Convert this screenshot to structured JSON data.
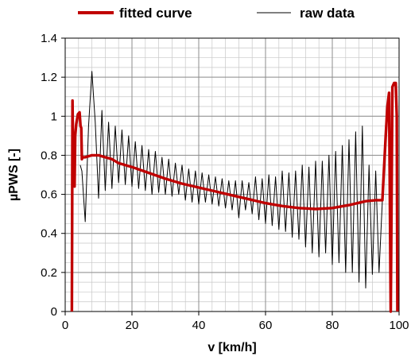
{
  "chart_data": {
    "type": "line",
    "xlabel": "v [km/h]",
    "ylabel": "µPWS [-]",
    "xlim": [
      0,
      100
    ],
    "ylim": [
      0,
      1.4
    ],
    "x_ticks": [
      0,
      20,
      40,
      60,
      80,
      100
    ],
    "y_ticks": [
      0,
      0.2,
      0.4,
      0.6,
      0.8,
      1,
      1.2,
      1.4
    ],
    "x_tick_labels": [
      "0",
      "20",
      "40",
      "60",
      "80",
      "100"
    ],
    "y_tick_labels": [
      "0",
      "0.2",
      "0.4",
      "0.6",
      "0.8",
      "1",
      "1.2",
      "1.4"
    ],
    "grid": true,
    "legend_position": "top",
    "series": [
      {
        "name": "fitted curve",
        "color": "#c00000",
        "x": [
          2.0,
          2.2,
          2.4,
          2.8,
          3.0,
          3.3,
          3.8,
          4.3,
          4.6,
          4.8,
          5.0,
          5.2,
          6,
          8,
          10,
          12,
          14,
          16,
          18,
          20,
          25,
          30,
          35,
          40,
          45,
          50,
          55,
          60,
          65,
          70,
          75,
          80,
          85,
          90,
          93,
          95,
          96,
          96.5,
          97,
          97.5,
          98,
          98.5,
          99,
          99.3,
          99.5
        ],
        "values": [
          0.0,
          1.08,
          0.72,
          0.64,
          0.9,
          0.96,
          1.01,
          1.02,
          0.95,
          0.94,
          0.78,
          0.79,
          0.79,
          0.8,
          0.8,
          0.79,
          0.78,
          0.76,
          0.75,
          0.74,
          0.71,
          0.68,
          0.655,
          0.635,
          0.615,
          0.595,
          0.575,
          0.555,
          0.54,
          0.53,
          0.525,
          0.53,
          0.545,
          0.565,
          0.57,
          0.57,
          0.9,
          1.05,
          1.12,
          0.0,
          1.15,
          1.17,
          1.17,
          1.0,
          0.0
        ]
      },
      {
        "name": "raw data",
        "color": "#000000",
        "x": [
          4.5,
          5,
          6,
          7,
          8,
          9,
          10,
          11,
          12,
          13,
          14,
          15,
          16,
          17,
          18,
          19,
          20,
          21,
          22,
          23,
          24,
          25,
          26,
          27,
          28,
          29,
          30,
          31,
          32,
          33,
          34,
          35,
          36,
          37,
          38,
          39,
          40,
          41,
          42,
          43,
          44,
          45,
          46,
          47,
          48,
          49,
          50,
          51,
          52,
          53,
          54,
          55,
          56,
          57,
          58,
          59,
          60,
          61,
          62,
          63,
          64,
          65,
          66,
          67,
          68,
          69,
          70,
          71,
          72,
          73,
          74,
          75,
          76,
          77,
          78,
          79,
          80,
          81,
          82,
          83,
          84,
          85,
          86,
          87,
          88,
          89,
          90,
          91,
          92,
          93,
          94,
          95
        ],
        "values": [
          0.75,
          0.72,
          0.46,
          0.95,
          1.23,
          0.97,
          0.58,
          1.03,
          0.62,
          0.97,
          0.63,
          0.95,
          0.66,
          0.93,
          0.65,
          0.9,
          0.64,
          0.87,
          0.63,
          0.85,
          0.62,
          0.83,
          0.6,
          0.82,
          0.61,
          0.79,
          0.6,
          0.78,
          0.59,
          0.76,
          0.6,
          0.75,
          0.57,
          0.73,
          0.56,
          0.72,
          0.55,
          0.71,
          0.56,
          0.7,
          0.55,
          0.69,
          0.54,
          0.68,
          0.53,
          0.67,
          0.52,
          0.67,
          0.48,
          0.67,
          0.52,
          0.66,
          0.5,
          0.69,
          0.47,
          0.68,
          0.45,
          0.7,
          0.44,
          0.69,
          0.42,
          0.72,
          0.41,
          0.71,
          0.38,
          0.72,
          0.37,
          0.75,
          0.33,
          0.74,
          0.3,
          0.77,
          0.28,
          0.77,
          0.3,
          0.8,
          0.24,
          0.82,
          0.25,
          0.85,
          0.2,
          0.88,
          0.2,
          0.92,
          0.15,
          0.95,
          0.12,
          0.75,
          0.19,
          0.72,
          0.2,
          0.57
        ]
      }
    ]
  }
}
